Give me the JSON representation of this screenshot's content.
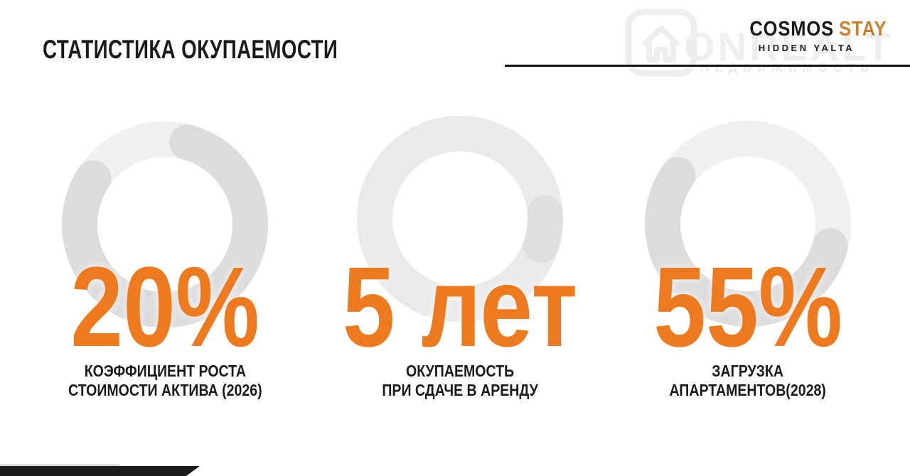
{
  "slide": {
    "title": "СТАТИСТИКА ОКУПАЕМОСТИ",
    "brand": {
      "primary": "COSMOS",
      "accent": "STAY",
      "tagline": "HIDDEN YALTA"
    },
    "watermark": {
      "big_text": "ONREALT",
      "sub_text": "НЕДВИЖИМОСТЬ",
      "icon": "house-icon"
    },
    "colors": {
      "accent_orange": "#ED7A1E",
      "logo_orange": "#C9812C",
      "ink": "#1A1A1C",
      "ring_light": "#F0F0F2",
      "ring_dark": "#DCDCDE",
      "corner_black": "#1C1C1E"
    },
    "stats": [
      {
        "value": "20%",
        "label_line1": "КОЭФФИЦИЕНТ РОСТА",
        "label_line2": "СТОИМОСТИ АКТИВА (2026)",
        "ring": {
          "base_color": "#F0F0F2",
          "arc_color": "#DCDCDE",
          "start_deg": 15,
          "sweep_deg": 288
        }
      },
      {
        "value": "5 лет",
        "label_line1": "ОКУПАЕМОСТЬ",
        "label_line2": "ПРИ СДАЧЕ В АРЕНДУ",
        "ring": {
          "base_color": "#EAEAEC",
          "arc_color": "#DFDFE1",
          "start_deg": 86,
          "sweep_deg": 22
        }
      },
      {
        "value": "55%",
        "label_line1": "ЗАГРУЗКА",
        "label_line2": "АПАРТАМЕНТОВ(2028)",
        "ring": {
          "base_color": "#F0F0F2",
          "arc_color": "#DCDCDE",
          "start_deg": 105,
          "sweep_deg": 200
        }
      }
    ]
  },
  "chart_data": [
    {
      "type": "pie",
      "style": "donut-indicator",
      "title": "КОЭФФИЦИЕНТ РОСТА СТОИМОСТИ АКТИВА (2026)",
      "center_label": "20%",
      "values": [
        20,
        80
      ],
      "legend_position": "none"
    },
    {
      "type": "pie",
      "style": "donut-indicator",
      "title": "ОКУПАЕМОСТЬ ПРИ СДАЧЕ В АРЕНДУ",
      "center_label": "5 лет",
      "values": [
        100
      ],
      "legend_position": "none"
    },
    {
      "type": "pie",
      "style": "donut-indicator",
      "title": "ЗАГРУЗКА АПАРТАМЕНТОВ(2028)",
      "center_label": "55%",
      "values": [
        55,
        45
      ],
      "legend_position": "none"
    }
  ]
}
